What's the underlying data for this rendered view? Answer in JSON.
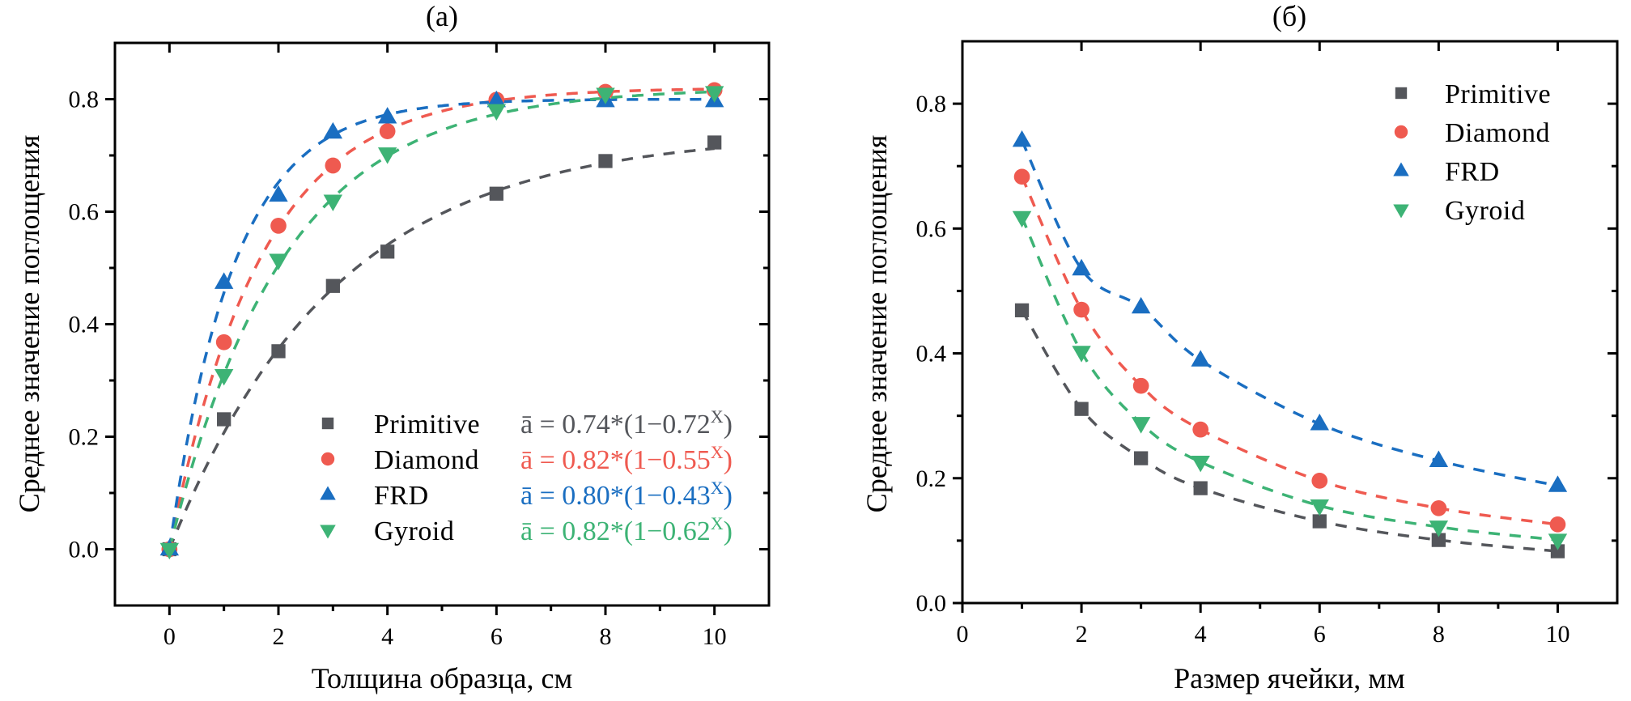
{
  "chart_data": [
    {
      "type": "scatter",
      "panel": "(a)",
      "title": "(a)",
      "xlabel": "Толщина образца, см",
      "ylabel": "Среднее значение поглощения",
      "xlim": [
        -1,
        11
      ],
      "ylim": [
        -0.1,
        0.9
      ],
      "xticks": [
        0,
        2,
        4,
        6,
        8,
        10
      ],
      "xticks_minor": [
        -1,
        1,
        3,
        5,
        7,
        9,
        11
      ],
      "yticks": [
        0.0,
        0.2,
        0.4,
        0.6,
        0.8
      ],
      "yticks_minor": [
        -0.1,
        0.1,
        0.3,
        0.5,
        0.7,
        0.9
      ],
      "ytick_labels": [
        "0.0",
        "0.2",
        "0.4",
        "0.6",
        "0.8"
      ],
      "grid": false,
      "legend_position": "bottom-right",
      "fit_model": "a*(1-b^x)",
      "x": [
        0,
        1,
        2,
        3,
        4,
        6,
        8,
        10
      ],
      "series": [
        {
          "name": "Primitive",
          "marker": "square",
          "color": "#54565b",
          "values": [
            0.0,
            0.231,
            0.352,
            0.468,
            0.529,
            0.632,
            0.69,
            0.723
          ],
          "fit": {
            "a": 0.74,
            "b": 0.72
          },
          "equation": "ā = 0.74*(1−0.72",
          "equation_sup": "X",
          "equation_end": ")"
        },
        {
          "name": "Diamond",
          "marker": "circle",
          "color": "#ef5a50",
          "values": [
            0.0,
            0.368,
            0.575,
            0.682,
            0.743,
            0.799,
            0.813,
            0.816
          ],
          "fit": {
            "a": 0.82,
            "b": 0.55
          },
          "equation": "ā = 0.82*(1−0.55",
          "equation_sup": "X",
          "equation_end": ")"
        },
        {
          "name": "FRD",
          "marker": "triangle-up",
          "color": "#1a6ec1",
          "values": [
            0.0,
            0.474,
            0.629,
            0.741,
            0.768,
            0.797,
            0.797,
            0.797
          ],
          "fit": {
            "a": 0.8,
            "b": 0.43
          },
          "equation": "ā = 0.80*(1−0.43",
          "equation_sup": "X",
          "equation_end": ")"
        },
        {
          "name": "Gyroid",
          "marker": "triangle-down",
          "color": "#3db375",
          "values": [
            0.0,
            0.309,
            0.514,
            0.619,
            0.703,
            0.78,
            0.809,
            0.812
          ],
          "fit": {
            "a": 0.82,
            "b": 0.62
          },
          "equation": "ā = 0.82*(1−0.62",
          "equation_sup": "X",
          "equation_end": ")"
        }
      ]
    },
    {
      "type": "scatter",
      "panel": "(б)",
      "title": "(б)",
      "xlabel": "Размер ячейки, мм",
      "ylabel": "Среднее значение поглощения",
      "xlim": [
        0,
        11
      ],
      "ylim": [
        0.0,
        0.9
      ],
      "xticks": [
        0,
        2,
        4,
        6,
        8,
        10
      ],
      "xticks_minor": [
        1,
        3,
        5,
        7,
        9,
        11
      ],
      "yticks": [
        0.0,
        0.2,
        0.4,
        0.6,
        0.8
      ],
      "yticks_minor": [
        0.1,
        0.3,
        0.5,
        0.7,
        0.9
      ],
      "ytick_labels": [
        "0.0",
        "0.2",
        "0.4",
        "0.6",
        "0.8"
      ],
      "grid": false,
      "legend_position": "top-right",
      "x": [
        1,
        2,
        3,
        4,
        6,
        8,
        10
      ],
      "series": [
        {
          "name": "Primitive",
          "marker": "square",
          "color": "#54565b",
          "values": [
            0.469,
            0.311,
            0.232,
            0.184,
            0.131,
            0.101,
            0.083
          ]
        },
        {
          "name": "Diamond",
          "marker": "circle",
          "color": "#ef5a50",
          "values": [
            0.683,
            0.47,
            0.348,
            0.278,
            0.196,
            0.152,
            0.126
          ]
        },
        {
          "name": "FRD",
          "marker": "triangle-up",
          "color": "#1a6ec1",
          "values": [
            0.741,
            0.535,
            0.474,
            0.389,
            0.287,
            0.228,
            0.188
          ]
        },
        {
          "name": "Gyroid",
          "marker": "triangle-down",
          "color": "#3db375",
          "values": [
            0.618,
            0.402,
            0.288,
            0.226,
            0.156,
            0.122,
            0.101
          ]
        }
      ]
    }
  ]
}
